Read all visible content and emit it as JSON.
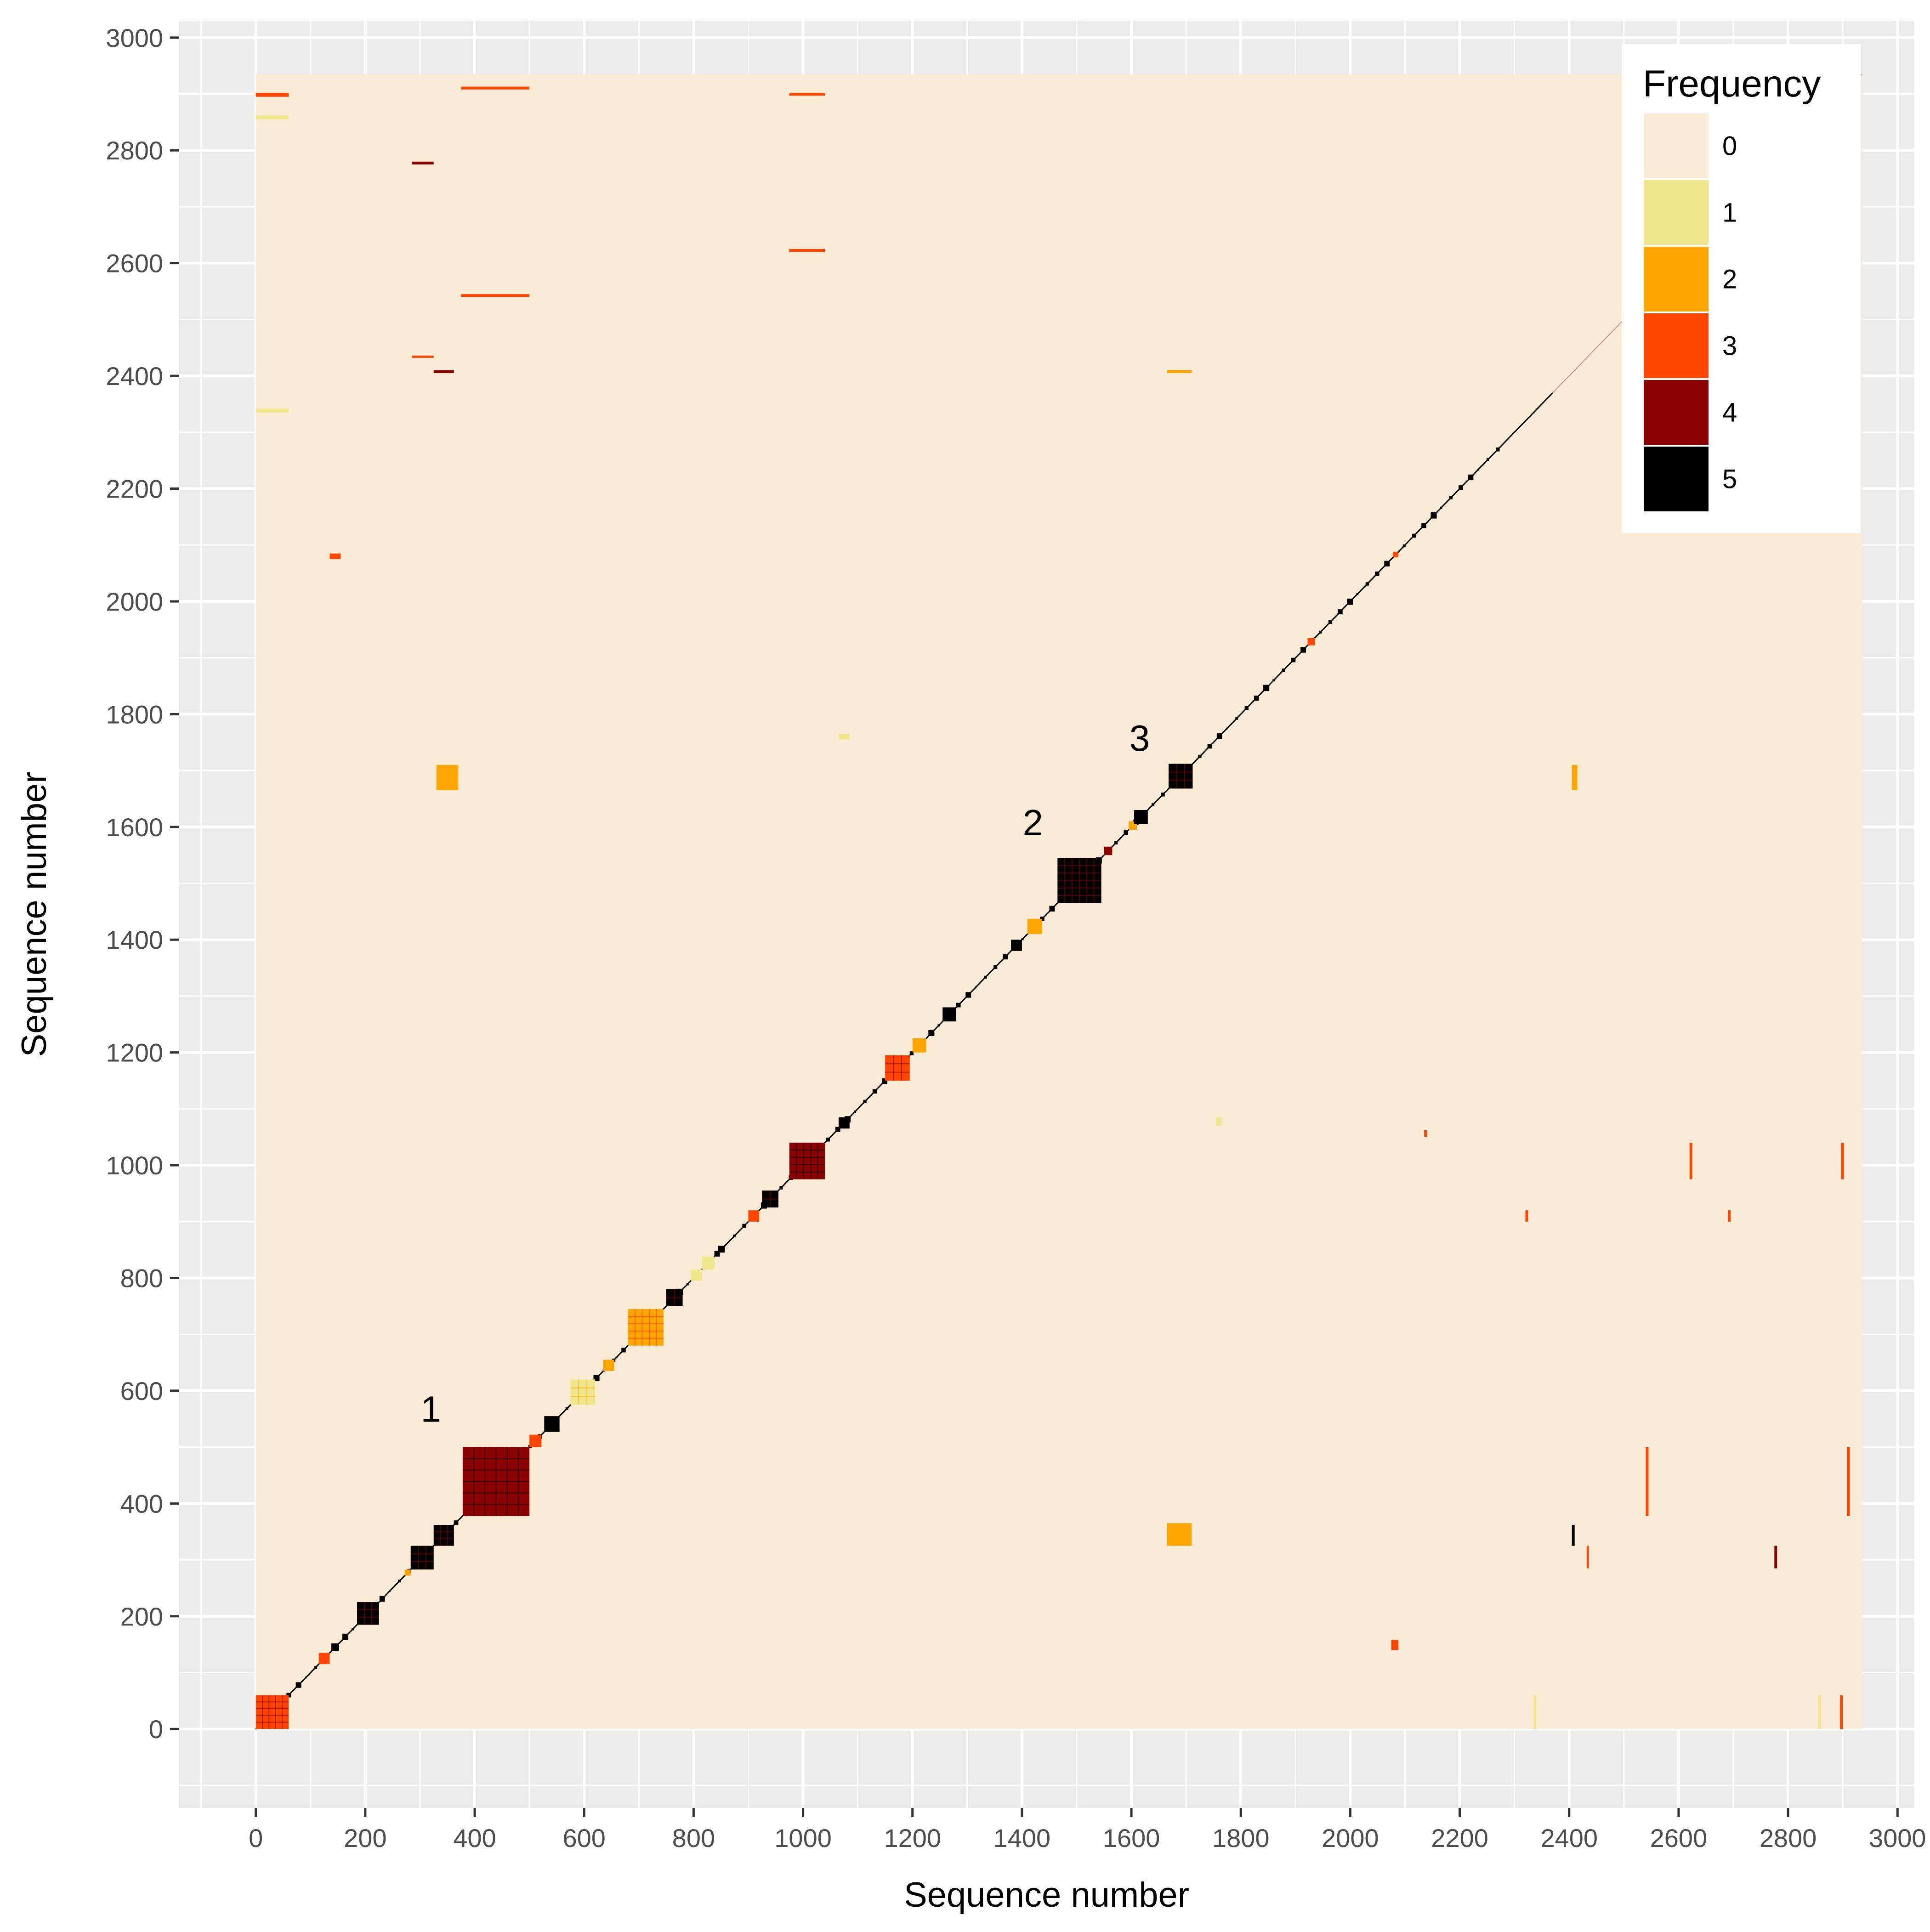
{
  "chart_data": {
    "type": "heatmap",
    "title": "",
    "xlabel": "Sequence number",
    "ylabel": "Sequence number",
    "xlim": [
      -140,
      3030
    ],
    "ylim": [
      -140,
      3030
    ],
    "x_ticks": [
      0,
      200,
      400,
      600,
      800,
      1000,
      1200,
      1400,
      1600,
      1800,
      2000,
      2200,
      2400,
      2600,
      2800,
      3000
    ],
    "y_ticks": [
      0,
      200,
      400,
      600,
      800,
      1000,
      1200,
      1400,
      1600,
      1800,
      2000,
      2200,
      2400,
      2600,
      2800,
      3000
    ],
    "matrix_extent": [
      0,
      2935
    ],
    "grid": true,
    "legend": {
      "title": "Frequency",
      "position": "top-right",
      "levels": [
        {
          "label": "0",
          "color": "#FAEBD7"
        },
        {
          "label": "1",
          "color": "#F0E68C"
        },
        {
          "label": "2",
          "color": "#FFA500"
        },
        {
          "label": "3",
          "color": "#FF4500"
        },
        {
          "label": "4",
          "color": "#8B0000"
        },
        {
          "label": "5",
          "color": "#000000"
        }
      ]
    },
    "annotations": [
      {
        "text": "1",
        "x": 320,
        "y": 545
      },
      {
        "text": "2",
        "x": 1420,
        "y": 1585
      },
      {
        "text": "3",
        "x": 1615,
        "y": 1735
      }
    ],
    "diagonal_blocks": [
      {
        "start": 0,
        "end": 60,
        "level": 3
      },
      {
        "start": 115,
        "end": 135,
        "level": 3
      },
      {
        "start": 138,
        "end": 152,
        "level": 5
      },
      {
        "start": 185,
        "end": 225,
        "level": 5
      },
      {
        "start": 272,
        "end": 283,
        "level": 2
      },
      {
        "start": 283,
        "end": 325,
        "level": 5
      },
      {
        "start": 325,
        "end": 362,
        "level": 5
      },
      {
        "start": 378,
        "end": 500,
        "level": 4
      },
      {
        "start": 500,
        "end": 522,
        "level": 3
      },
      {
        "start": 527,
        "end": 555,
        "level": 5
      },
      {
        "start": 575,
        "end": 620,
        "level": 1
      },
      {
        "start": 635,
        "end": 655,
        "level": 2
      },
      {
        "start": 680,
        "end": 745,
        "level": 2
      },
      {
        "start": 750,
        "end": 780,
        "level": 5
      },
      {
        "start": 795,
        "end": 815,
        "level": 1
      },
      {
        "start": 815,
        "end": 838,
        "level": 1
      },
      {
        "start": 845,
        "end": 857,
        "level": 5
      },
      {
        "start": 900,
        "end": 920,
        "level": 3
      },
      {
        "start": 925,
        "end": 955,
        "level": 5
      },
      {
        "start": 975,
        "end": 1040,
        "level": 4
      },
      {
        "start": 1065,
        "end": 1085,
        "level": 5
      },
      {
        "start": 1150,
        "end": 1195,
        "level": 3
      },
      {
        "start": 1200,
        "end": 1225,
        "level": 2
      },
      {
        "start": 1255,
        "end": 1280,
        "level": 5
      },
      {
        "start": 1380,
        "end": 1400,
        "level": 5
      },
      {
        "start": 1410,
        "end": 1437,
        "level": 2
      },
      {
        "start": 1465,
        "end": 1545,
        "level": 5
      },
      {
        "start": 1550,
        "end": 1565,
        "level": 4
      },
      {
        "start": 1595,
        "end": 1610,
        "level": 2
      },
      {
        "start": 1605,
        "end": 1630,
        "level": 5
      },
      {
        "start": 1668,
        "end": 1712,
        "level": 5
      },
      {
        "start": 1922,
        "end": 1935,
        "level": 3
      },
      {
        "start": 2078,
        "end": 2088,
        "level": 3
      }
    ],
    "off_diagonal_cells": [
      {
        "x": [
          330,
          370
        ],
        "y": [
          1665,
          1710
        ],
        "level": 2
      },
      {
        "x": [
          1665,
          1710
        ],
        "y": [
          325,
          365
        ],
        "level": 2
      },
      {
        "x": [
          135,
          155
        ],
        "y": [
          2075,
          2085
        ],
        "level": 3
      },
      {
        "x": [
          2075,
          2088
        ],
        "y": [
          140,
          158
        ],
        "level": 3
      },
      {
        "x": [
          1065,
          1085
        ],
        "y": [
          1755,
          1765
        ],
        "level": 1
      },
      {
        "x": [
          1755,
          1765
        ],
        "y": [
          1070,
          1085
        ],
        "level": 1
      },
      {
        "x": [
          0,
          60
        ],
        "y": [
          2335,
          2342
        ],
        "level": 1
      },
      {
        "x": [
          0,
          60
        ],
        "y": [
          2855,
          2862
        ],
        "level": 1
      },
      {
        "x": [
          0,
          60
        ],
        "y": [
          2895,
          2902
        ],
        "level": 3
      },
      {
        "x": [
          375,
          500
        ],
        "y": [
          2908,
          2913
        ],
        "level": 3
      },
      {
        "x": [
          375,
          500
        ],
        "y": [
          2540,
          2545
        ],
        "level": 3
      },
      {
        "x": [
          975,
          1040
        ],
        "y": [
          2620,
          2625
        ],
        "level": 3
      },
      {
        "x": [
          975,
          1040
        ],
        "y": [
          2897,
          2902
        ],
        "level": 3
      },
      {
        "x": [
          285,
          325
        ],
        "y": [
          2775,
          2780
        ],
        "level": 4
      },
      {
        "x": [
          285,
          325
        ],
        "y": [
          2432,
          2436
        ],
        "level": 3
      },
      {
        "x": [
          325,
          362
        ],
        "y": [
          2405,
          2410
        ],
        "level": 4
      },
      {
        "x": [
          2335,
          2340
        ],
        "y": [
          0,
          60
        ],
        "level": 1
      },
      {
        "x": [
          2855,
          2860
        ],
        "y": [
          0,
          60
        ],
        "level": 1
      },
      {
        "x": [
          2895,
          2900
        ],
        "y": [
          0,
          60
        ],
        "level": 3
      },
      {
        "x": [
          2620,
          2625
        ],
        "y": [
          975,
          1040
        ],
        "level": 3
      },
      {
        "x": [
          2897,
          2902
        ],
        "y": [
          975,
          1040
        ],
        "level": 3
      },
      {
        "x": [
          2540,
          2545
        ],
        "y": [
          378,
          500
        ],
        "level": 3
      },
      {
        "x": [
          2908,
          2913
        ],
        "y": [
          378,
          500
        ],
        "level": 3
      },
      {
        "x": [
          2405,
          2410
        ],
        "y": [
          325,
          362
        ],
        "level": 5
      },
      {
        "x": [
          2775,
          2780
        ],
        "y": [
          285,
          325
        ],
        "level": 4
      },
      {
        "x": [
          2432,
          2436
        ],
        "y": [
          285,
          325
        ],
        "level": 3
      },
      {
        "x": [
          2405,
          2415
        ],
        "y": [
          1665,
          1710
        ],
        "level": 2
      },
      {
        "x": [
          1665,
          1710
        ],
        "y": [
          2405,
          2410
        ],
        "level": 2
      },
      {
        "x": [
          2320,
          2325
        ],
        "y": [
          900,
          920
        ],
        "level": 3
      },
      {
        "x": [
          2690,
          2695
        ],
        "y": [
          900,
          920
        ],
        "level": 3
      },
      {
        "x": [
          2135,
          2140
        ],
        "y": [
          1050,
          1062
        ],
        "level": 3
      }
    ]
  }
}
